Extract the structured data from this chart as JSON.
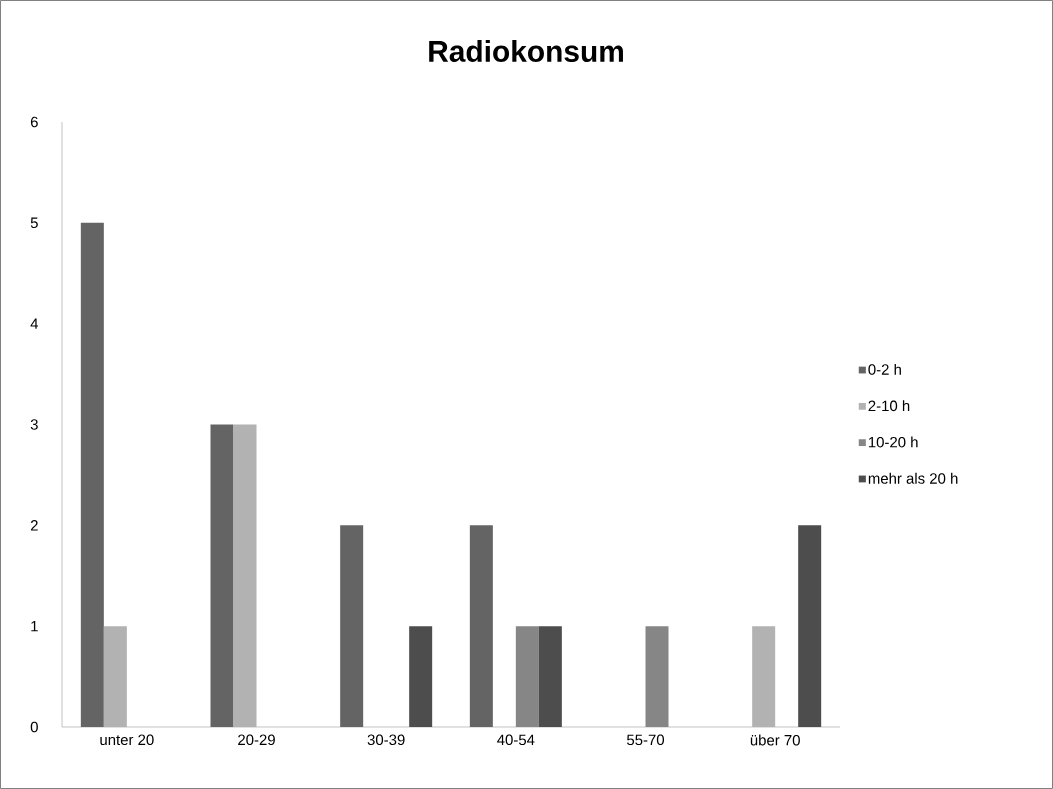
{
  "chart_data": {
    "type": "bar",
    "title": "Radiokonsum",
    "categories": [
      "unter 20",
      "20-29",
      "30-39",
      "40-54",
      "55-70",
      "über 70"
    ],
    "series": [
      {
        "name": "0-2 h",
        "color": "#646464",
        "values": [
          5,
          3,
          2,
          2,
          0,
          0
        ]
      },
      {
        "name": "2-10 h",
        "color": "#b2b2b2",
        "values": [
          1,
          3,
          0,
          0,
          0,
          1
        ]
      },
      {
        "name": "10-20 h",
        "color": "#868686",
        "values": [
          0,
          0,
          0,
          1,
          1,
          0
        ]
      },
      {
        "name": "mehr als 20 h",
        "color": "#4d4d4d",
        "values": [
          0,
          0,
          1,
          1,
          0,
          2
        ]
      }
    ],
    "ylim": [
      0,
      6
    ],
    "yticks": [
      0,
      1,
      2,
      3,
      4,
      5,
      6
    ],
    "legend": "right"
  }
}
